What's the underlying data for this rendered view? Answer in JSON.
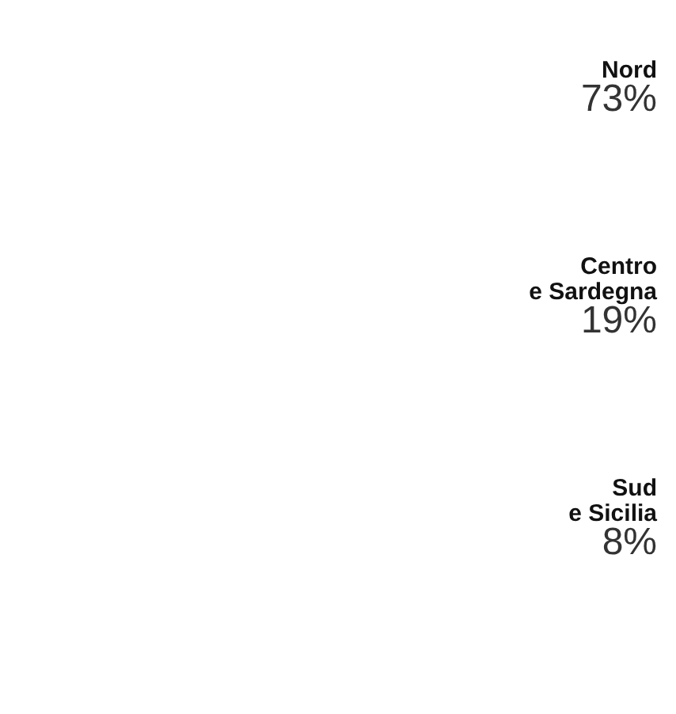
{
  "chart_data": {
    "type": "other",
    "categories": [
      "Nord",
      "Centro\ne Sardegna",
      "Sud\ne Sicilia"
    ],
    "values": [
      73,
      19,
      8
    ],
    "value_labels": [
      "73%",
      "19%",
      "8%"
    ]
  }
}
